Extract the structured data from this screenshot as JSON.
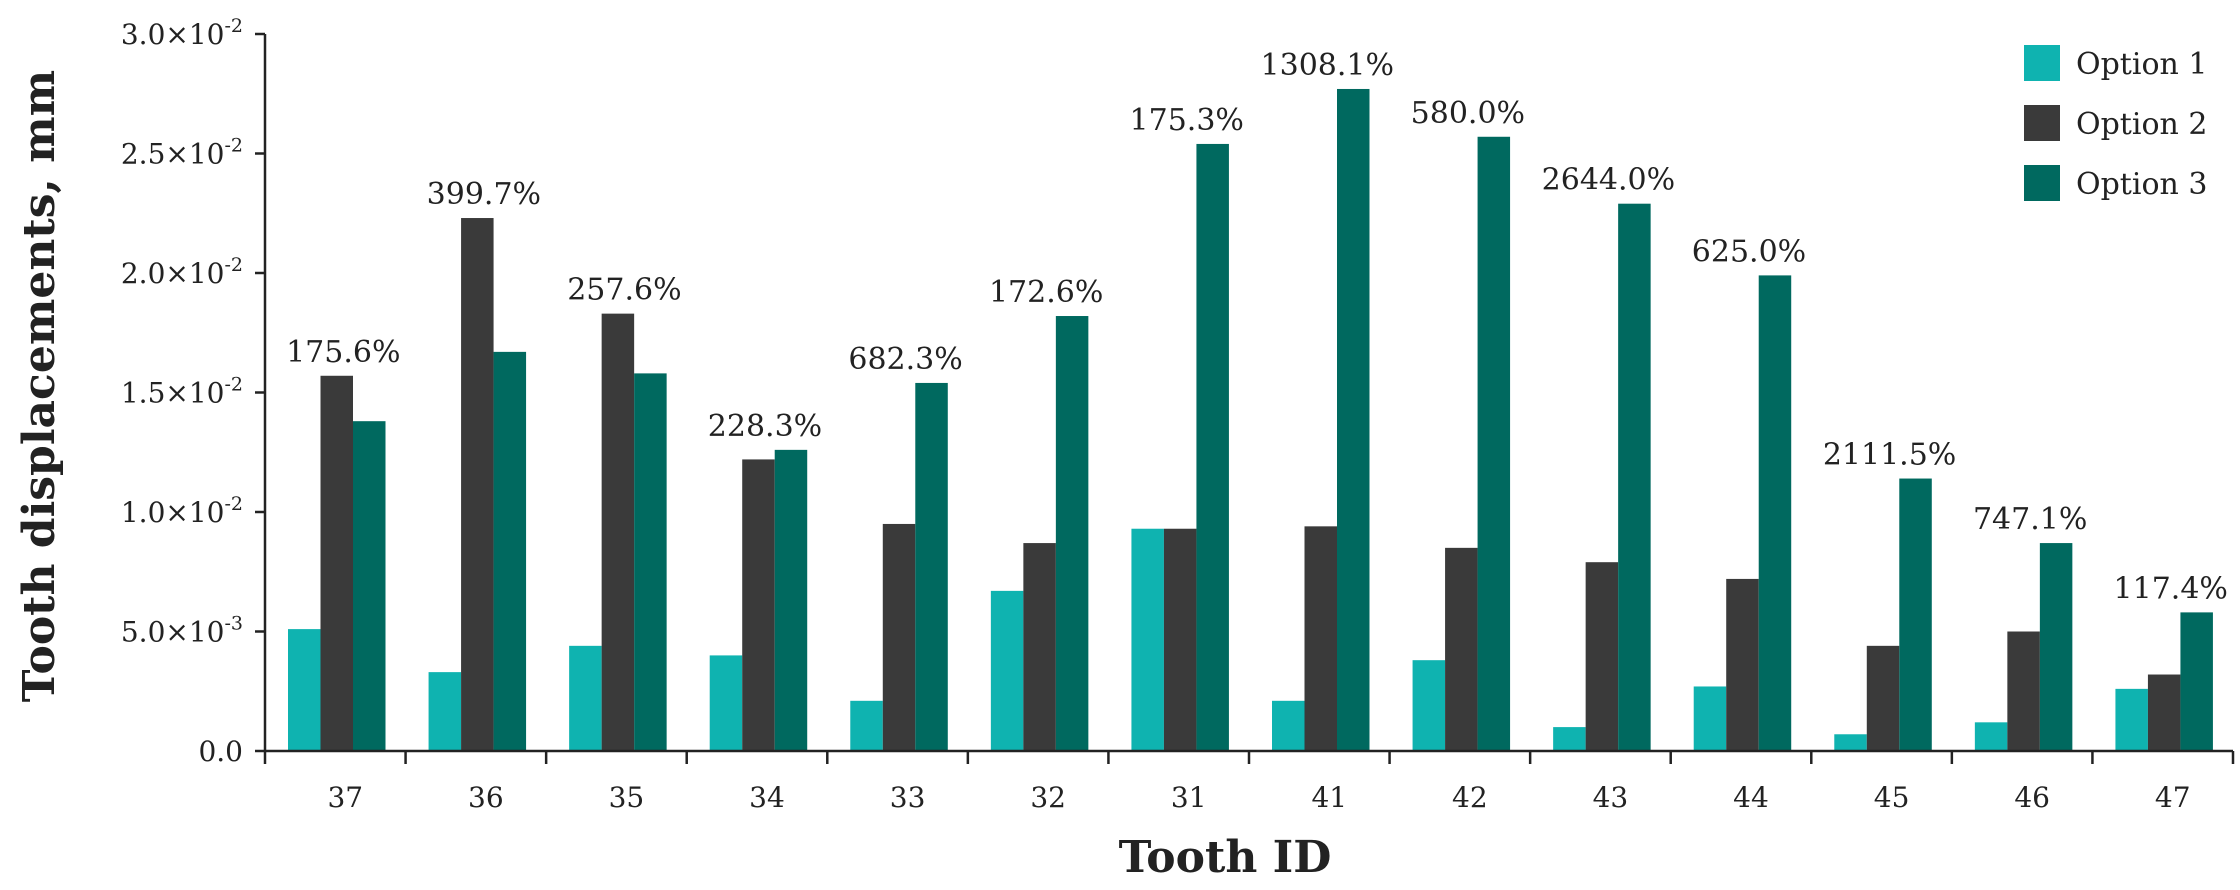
{
  "chart_data": {
    "type": "bar",
    "title": "",
    "xlabel": "Tooth ID",
    "ylabel": "Tooth displacements, mm",
    "categories": [
      "37",
      "36",
      "35",
      "34",
      "33",
      "32",
      "31",
      "41",
      "42",
      "43",
      "44",
      "45",
      "46",
      "47"
    ],
    "ylim": [
      0,
      0.03
    ],
    "yticks": [
      0,
      0.005,
      0.01,
      0.015,
      0.02,
      0.025,
      0.03
    ],
    "ytick_mantissas": [
      "0.0",
      "5.0×10",
      "1.0×10",
      "1.5×10",
      "2.0×10",
      "2.5×10",
      "3.0×10"
    ],
    "ytick_exponents": [
      "",
      "-3",
      "-2",
      "-2",
      "-2",
      "-2",
      "-2"
    ],
    "grid": false,
    "legend_position": "top-right",
    "series": [
      {
        "name": "Option 1",
        "color": "#0fb3b0",
        "values": [
          0.0051,
          0.0033,
          0.0044,
          0.004,
          0.0021,
          0.0067,
          0.0093,
          0.0021,
          0.0038,
          0.001,
          0.0027,
          0.0007,
          0.0012,
          0.0026
        ]
      },
      {
        "name": "Option 2",
        "color": "#3a3a3a",
        "values": [
          0.0157,
          0.0223,
          0.0183,
          0.0122,
          0.0095,
          0.0087,
          0.0093,
          0.0094,
          0.0085,
          0.0079,
          0.0072,
          0.0044,
          0.005,
          0.0032
        ]
      },
      {
        "name": "Option 3",
        "color": "#00695f",
        "values": [
          0.0138,
          0.0167,
          0.0158,
          0.0126,
          0.0154,
          0.0182,
          0.0254,
          0.0277,
          0.0257,
          0.0229,
          0.0199,
          0.0114,
          0.0087,
          0.0058
        ]
      }
    ],
    "annotations": [
      "175.6%",
      "399.7%",
      "257.6%",
      "228.3%",
      "682.3%",
      "172.6%",
      "175.3%",
      "1308.1%",
      "580.0%",
      "2644.0%",
      "625.0%",
      "2111.5%",
      "747.1%",
      "117.4%"
    ]
  }
}
